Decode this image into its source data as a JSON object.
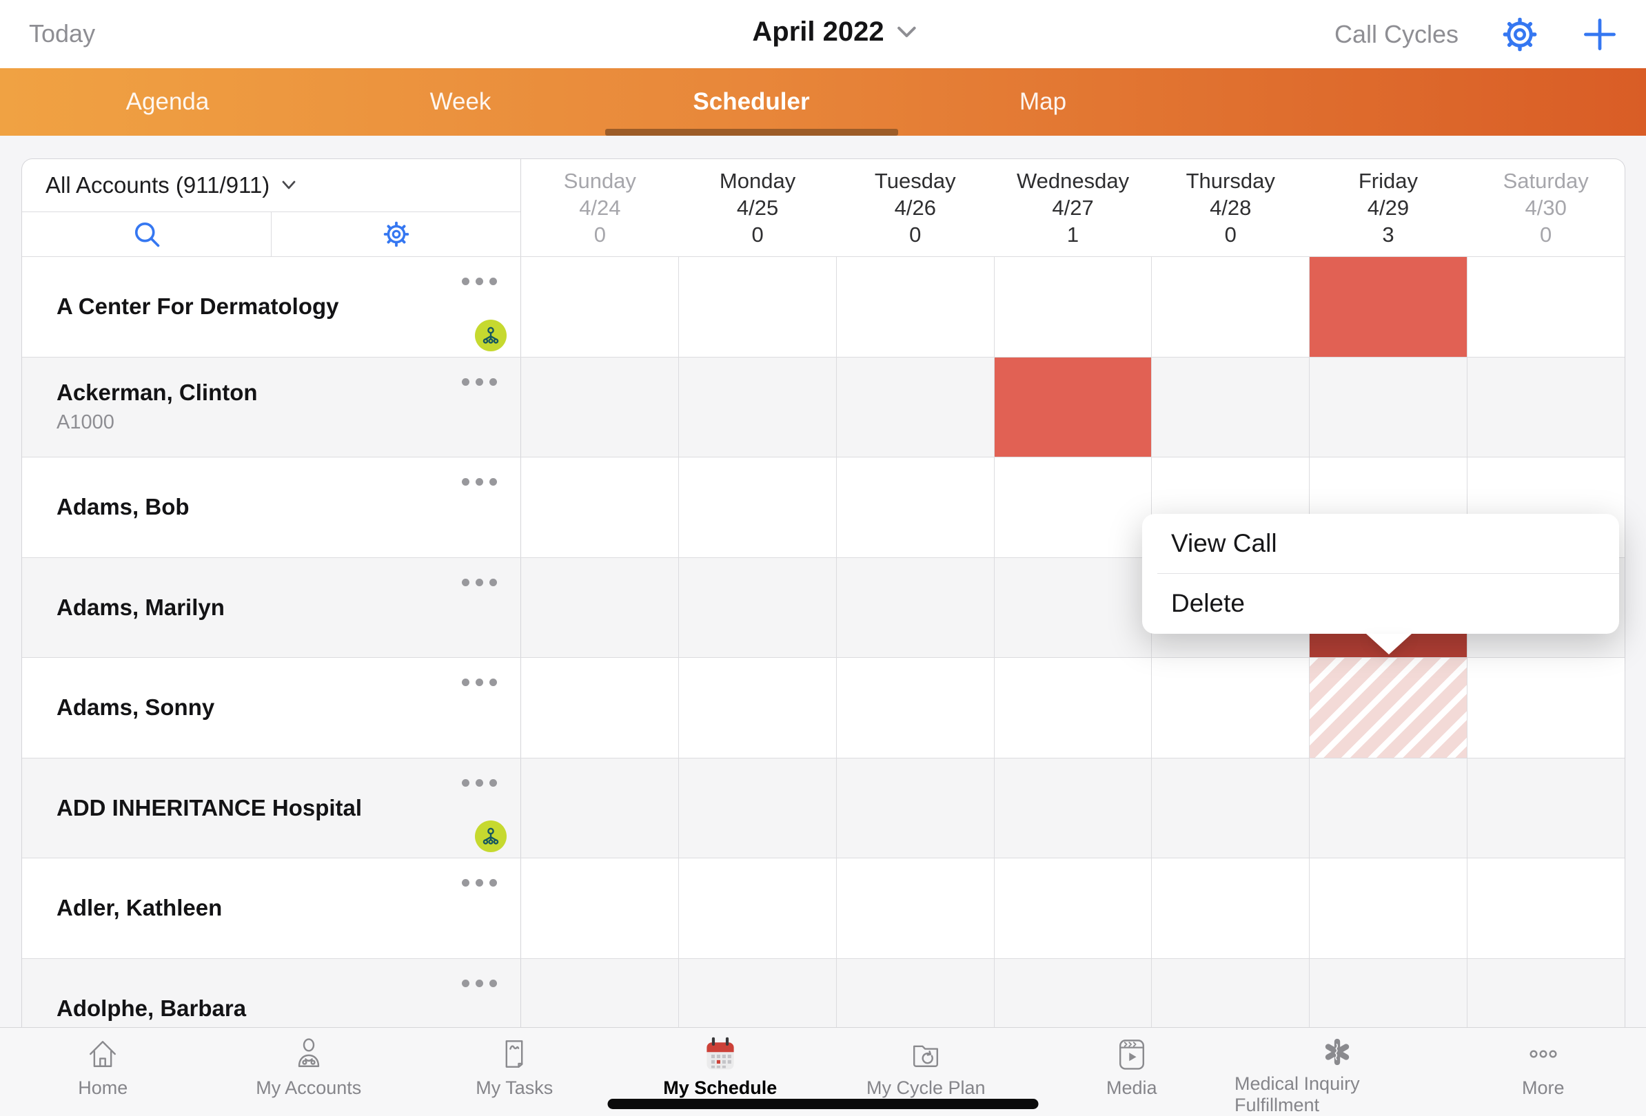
{
  "topbar": {
    "today_label": "Today",
    "title": "April 2022",
    "call_cycles_label": "Call Cycles"
  },
  "tabs": [
    {
      "label": "Agenda",
      "active": false
    },
    {
      "label": "Week",
      "active": false
    },
    {
      "label": "Scheduler",
      "active": true
    },
    {
      "label": "Map",
      "active": false
    }
  ],
  "filter": {
    "label": "All Accounts (911/911)"
  },
  "days": [
    {
      "name": "Sunday",
      "date": "4/24",
      "count": "0",
      "weekend": true
    },
    {
      "name": "Monday",
      "date": "4/25",
      "count": "0",
      "weekend": false
    },
    {
      "name": "Tuesday",
      "date": "4/26",
      "count": "0",
      "weekend": false
    },
    {
      "name": "Wednesday",
      "date": "4/27",
      "count": "1",
      "weekend": false
    },
    {
      "name": "Thursday",
      "date": "4/28",
      "count": "0",
      "weekend": false
    },
    {
      "name": "Friday",
      "date": "4/29",
      "count": "3",
      "weekend": false
    },
    {
      "name": "Saturday",
      "date": "4/30",
      "count": "0",
      "weekend": true
    }
  ],
  "accounts": [
    {
      "name": "A Center For Dermatology",
      "code": "",
      "affiliation": true,
      "shaded": false
    },
    {
      "name": "Ackerman, Clinton",
      "code": "A1000",
      "affiliation": false,
      "shaded": true
    },
    {
      "name": "Adams, Bob",
      "code": "",
      "affiliation": false,
      "shaded": false
    },
    {
      "name": "Adams, Marilyn",
      "code": "",
      "affiliation": false,
      "shaded": true
    },
    {
      "name": "Adams, Sonny",
      "code": "",
      "affiliation": false,
      "shaded": false
    },
    {
      "name": "ADD INHERITANCE Hospital",
      "code": "",
      "affiliation": true,
      "shaded": true
    },
    {
      "name": "Adler, Kathleen",
      "code": "",
      "affiliation": false,
      "shaded": false
    },
    {
      "name": "Adolphe, Barbara",
      "code": "",
      "affiliation": false,
      "shaded": true
    }
  ],
  "calls": [
    {
      "account_index": 0,
      "day_index": 5,
      "kind": "call"
    },
    {
      "account_index": 1,
      "day_index": 3,
      "kind": "call"
    },
    {
      "account_index": 3,
      "day_index": 5,
      "kind": "call_selected"
    },
    {
      "account_index": 4,
      "day_index": 5,
      "kind": "planned"
    }
  ],
  "popup": {
    "items": [
      {
        "label": "View Call"
      },
      {
        "label": "Delete"
      }
    ]
  },
  "nav": [
    {
      "label": "Home",
      "active": false
    },
    {
      "label": "My Accounts",
      "active": false
    },
    {
      "label": "My Tasks",
      "active": false
    },
    {
      "label": "My Schedule",
      "active": true
    },
    {
      "label": "My Cycle Plan",
      "active": false
    },
    {
      "label": "Media",
      "active": false
    },
    {
      "label": "Medical Inquiry Fulfillment",
      "active": false
    },
    {
      "label": "More",
      "active": false
    }
  ],
  "colors": {
    "accent_blue": "#3577F1",
    "tab_gradient_start": "#F0A243",
    "tab_gradient_end": "#D95D26",
    "tab_underline": "#9C5C28",
    "call_red": "#E16154",
    "call_red_selected": "#B23F35",
    "planned_pink": "#F3DAD7",
    "affiliation_green": "#C6D92F",
    "affiliation_glyph": "#15565F"
  }
}
